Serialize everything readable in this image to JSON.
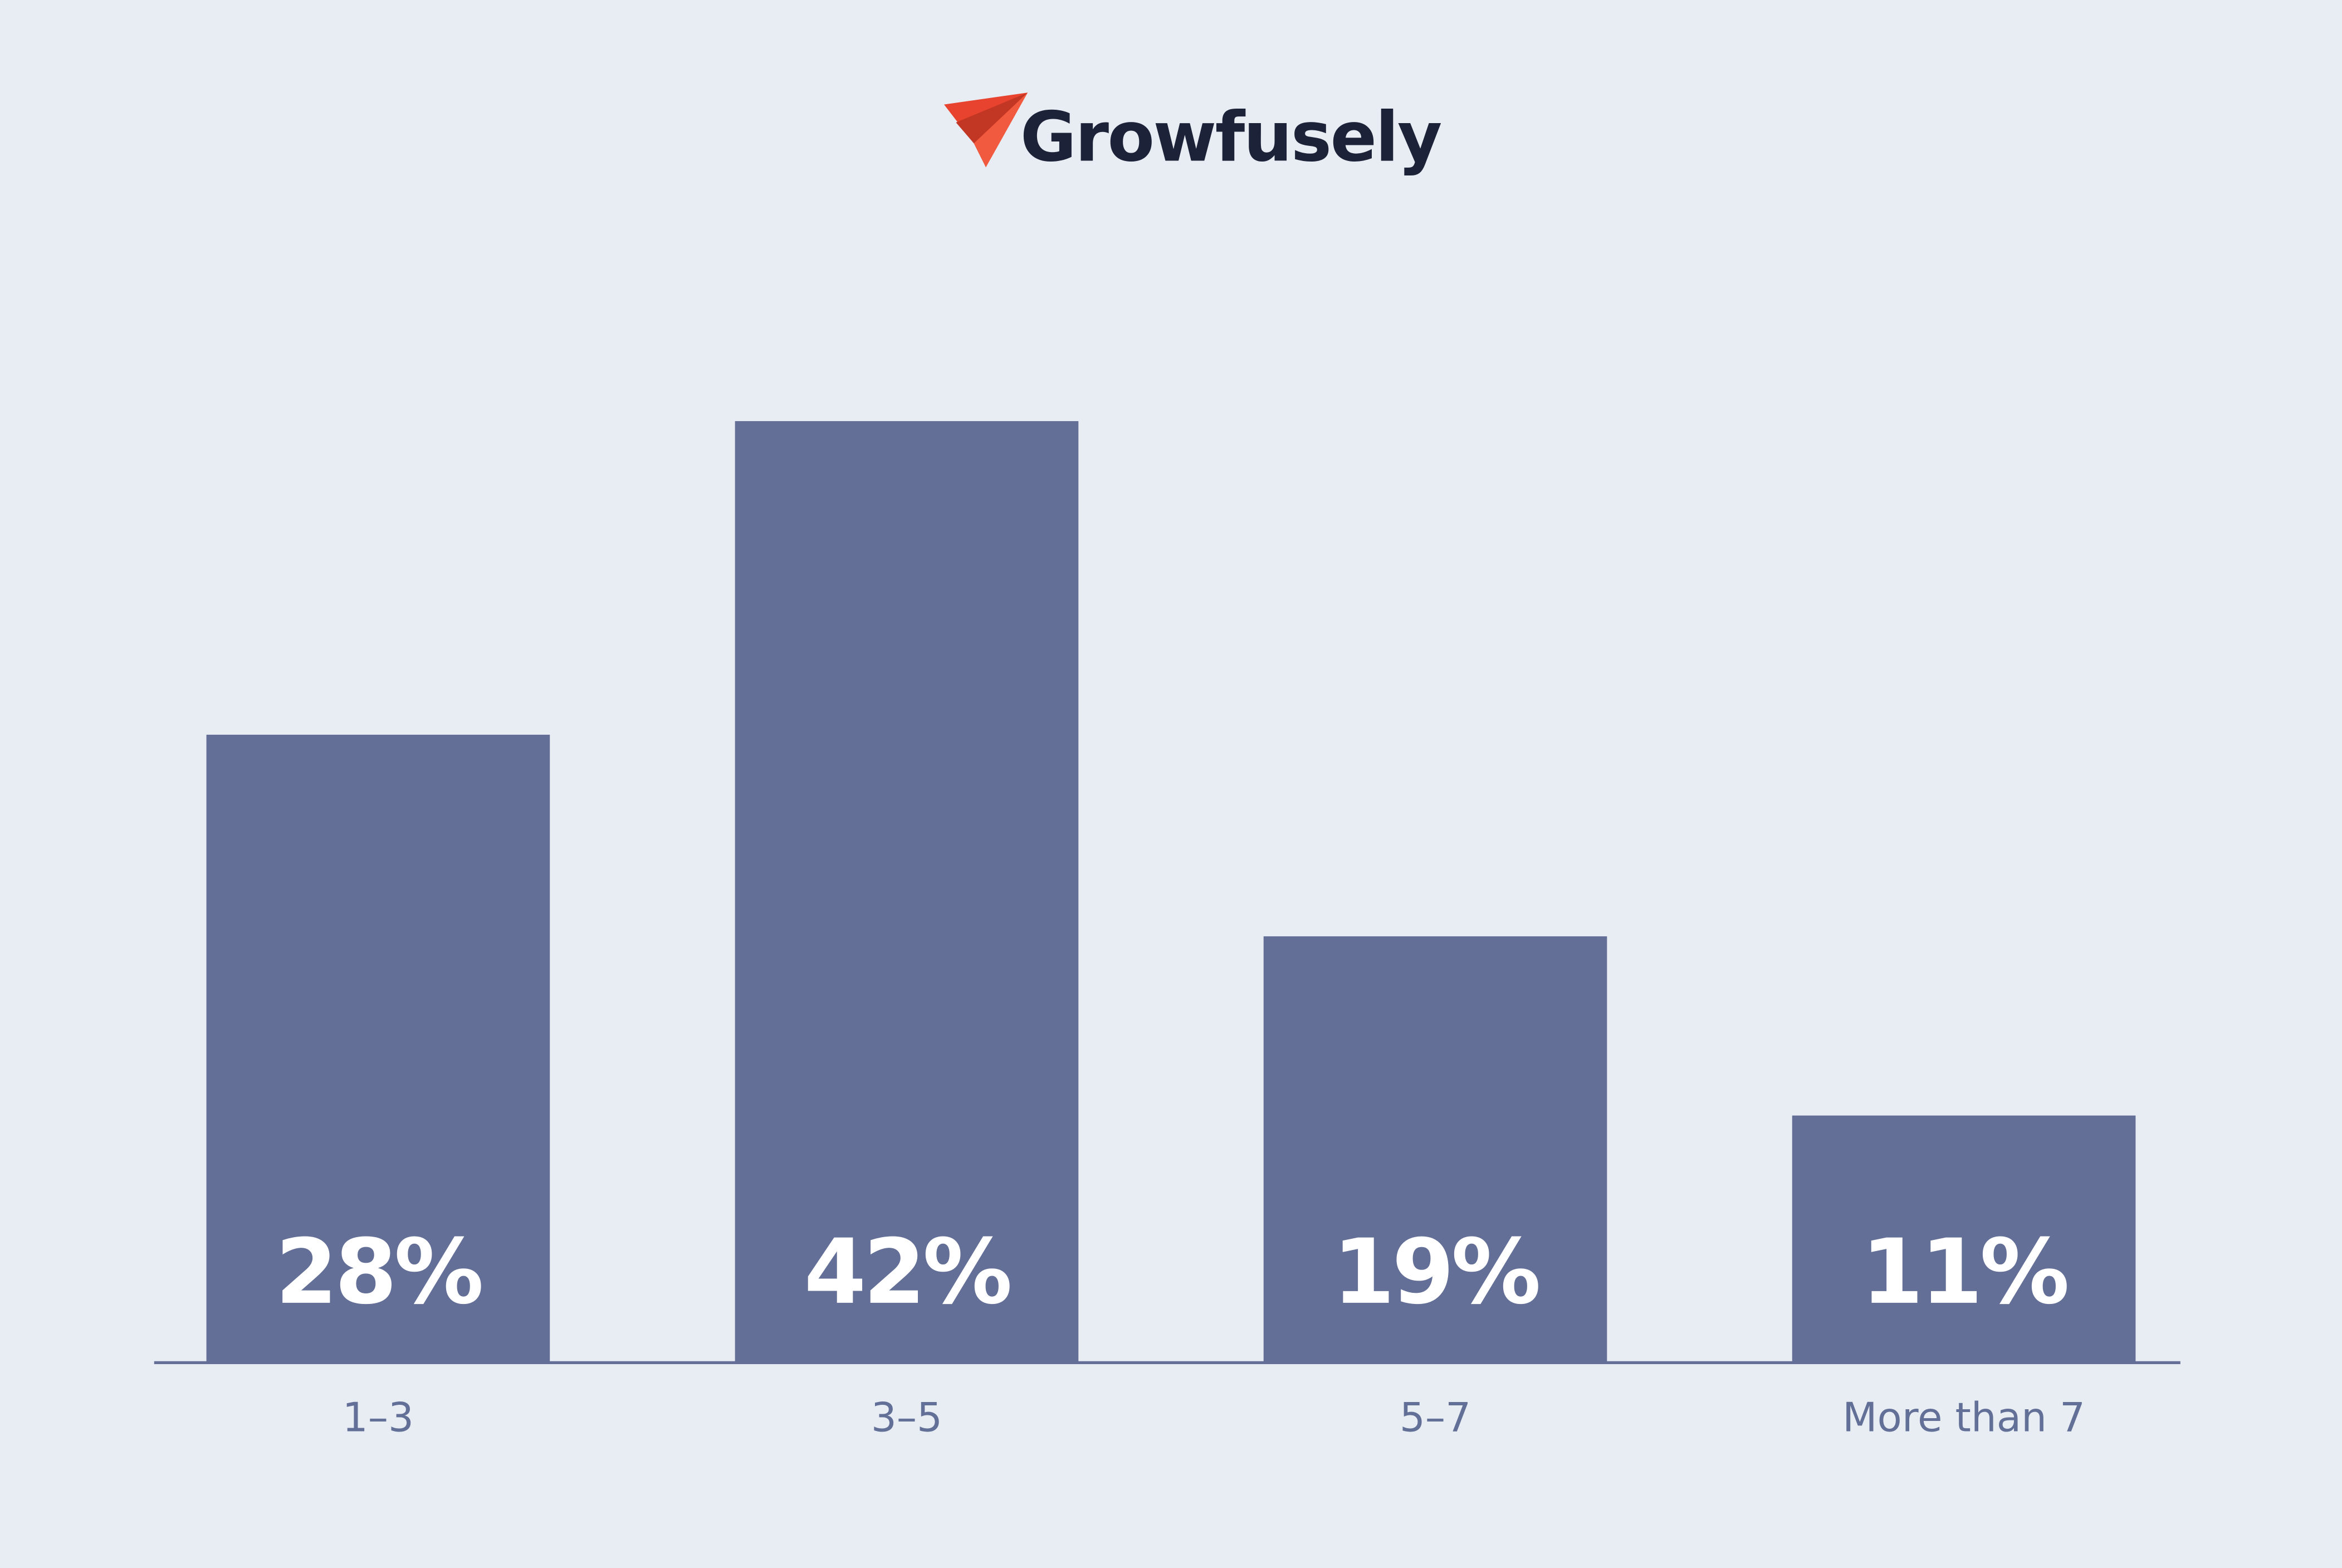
{
  "brand": "Growfusely",
  "chart_data": {
    "type": "bar",
    "categories": [
      "1–3",
      "3–5",
      "5–7",
      "More than 7"
    ],
    "values": [
      28,
      42,
      19,
      11
    ],
    "value_labels": [
      "28%",
      "42%",
      "19%",
      "11%"
    ],
    "color": "#636f97"
  }
}
